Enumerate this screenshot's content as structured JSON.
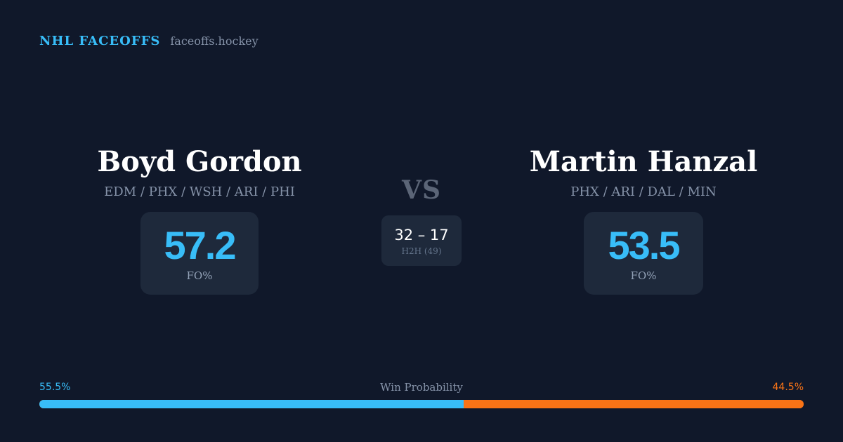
{
  "brand": {
    "name": "NHL FACEOFFS",
    "url": "faceoffs.hockey"
  },
  "player_left": {
    "name": "Boyd Gordon",
    "teams": "EDM / PHX / WSH / ARI / PHI",
    "fo_value": "57.2",
    "fo_label": "FO%"
  },
  "vs_label": "VS",
  "head_to_head": {
    "score": "32 – 17",
    "label": "H2H (49)"
  },
  "player_right": {
    "name": "Martin Hanzal",
    "teams": "PHX / ARI / DAL / MIN",
    "fo_value": "53.5",
    "fo_label": "FO%"
  },
  "win_probability": {
    "title": "Win Probability",
    "left_label": "55.5%",
    "right_label": "44.5%",
    "left_fraction": 0.555,
    "right_fraction": 0.445
  },
  "colors": {
    "background": "#10182a",
    "card": "#1e293b",
    "accent_blue": "#38bdf8",
    "accent_orange": "#f97316",
    "muted_text": "#8592a8"
  }
}
